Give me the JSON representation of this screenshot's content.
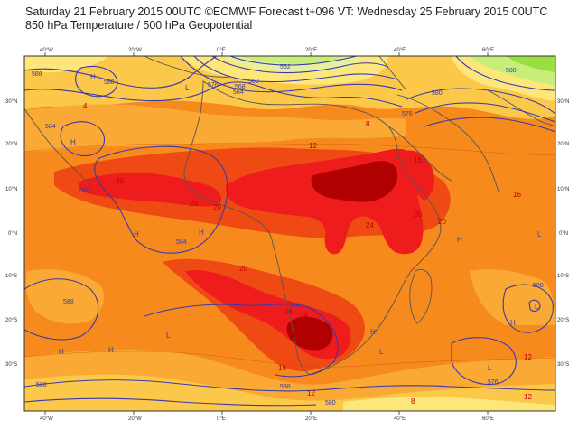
{
  "header": {
    "line1": "Saturday 21 February 2015 00UTC ©ECMWF Forecast t+096 VT: Wednesday 25 February 2015 00UTC",
    "line2": "850 hPa Temperature / 500 hPa Geopotential"
  },
  "axes": {
    "top_lon": [
      "40°W",
      "20°W",
      "0°E",
      "20°E",
      "40°E",
      "60°E"
    ],
    "bottom_lon": [
      "40°W",
      "20°W",
      "0°E",
      "20°E",
      "40°E",
      "60°E"
    ],
    "lat_left": [
      "30°N",
      "20°N",
      "10°N",
      "0°N",
      "10°S",
      "20°S",
      "30°S"
    ],
    "lat_right": [
      "30°N",
      "20°N",
      "10°N",
      "0°N",
      "10°S",
      "20°S",
      "30°S"
    ]
  },
  "temperature_labels": [
    {
      "text": "4"
    },
    {
      "text": "8"
    },
    {
      "text": "12"
    },
    {
      "text": "12"
    },
    {
      "text": "16"
    },
    {
      "text": "16"
    },
    {
      "text": "20"
    },
    {
      "text": "20"
    },
    {
      "text": "24"
    },
    {
      "text": "24"
    },
    {
      "text": "24"
    },
    {
      "text": "20"
    },
    {
      "text": "20"
    },
    {
      "text": "20"
    },
    {
      "text": "16"
    },
    {
      "text": "12"
    },
    {
      "text": "8"
    },
    {
      "text": "12"
    },
    {
      "text": "16"
    },
    {
      "text": "20"
    }
  ],
  "geopotential_labels": [
    {
      "text": "584"
    },
    {
      "text": "588"
    },
    {
      "text": "588"
    },
    {
      "text": "576"
    },
    {
      "text": "568"
    },
    {
      "text": "560"
    },
    {
      "text": "552"
    },
    {
      "text": "564"
    },
    {
      "text": "576"
    },
    {
      "text": "580"
    },
    {
      "text": "588"
    },
    {
      "text": "584"
    },
    {
      "text": "588"
    },
    {
      "text": "584"
    },
    {
      "text": "588"
    },
    {
      "text": "588"
    },
    {
      "text": "580"
    },
    {
      "text": "576"
    },
    {
      "text": "580"
    },
    {
      "text": "588"
    }
  ],
  "pressure_centers": [
    {
      "text": "H"
    },
    {
      "text": "H"
    },
    {
      "text": "L"
    },
    {
      "text": "H"
    },
    {
      "text": "H"
    },
    {
      "text": "L"
    },
    {
      "text": "H"
    },
    {
      "text": "H"
    },
    {
      "text": "L"
    },
    {
      "text": "L"
    },
    {
      "text": "H"
    },
    {
      "text": "L"
    },
    {
      "text": "L"
    },
    {
      "text": "H"
    },
    {
      "text": "H"
    }
  ],
  "colors": {
    "deep_red": "#b00000",
    "red": "#ee1c1c",
    "orange_red": "#f04a14",
    "orange": "#f78a1c",
    "light_orange": "#f9a934",
    "yellow_orange": "#fcc84a",
    "yellow": "#fde67a",
    "light_green": "#c8ee7a",
    "green": "#98e040",
    "contour": "#3a3aa8",
    "coast": "#555555"
  }
}
